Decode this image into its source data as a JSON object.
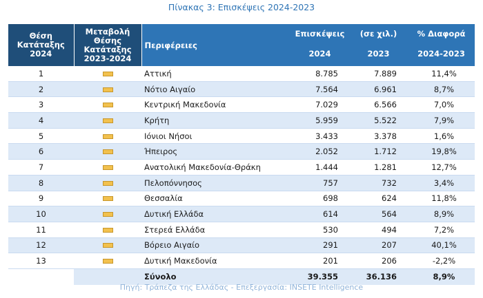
{
  "caption": "Πίνακας 3: Επισκέψεις 2024-2023",
  "header": {
    "rank_line1": "Θέση",
    "rank_line2": "Κατάταξης",
    "rank_line3": "2024",
    "change_line1": "Μεταβολή",
    "change_line2": "Θέσης",
    "change_line3": "Κατάταξης",
    "change_line4": "2023-2024",
    "region": "Περιφέρειες",
    "visits": "Επισκέψεις",
    "thousands": "(σε χιλ.)",
    "diff": "% Διαφορά",
    "year_2024": "2024",
    "year_2023": "2023",
    "diff_period": "2024-2023"
  },
  "rows": [
    {
      "rank": "1",
      "region": "Αττική",
      "v2024": "8.785",
      "v2023": "7.889",
      "diff": "11,4%"
    },
    {
      "rank": "2",
      "region": "Νότιο Αιγαίο",
      "v2024": "7.564",
      "v2023": "6.961",
      "diff": "8,7%"
    },
    {
      "rank": "3",
      "region": "Κεντρική Μακεδονία",
      "v2024": "7.029",
      "v2023": "6.566",
      "diff": "7,0%"
    },
    {
      "rank": "4",
      "region": "Κρήτη",
      "v2024": "5.959",
      "v2023": "5.522",
      "diff": "7,9%"
    },
    {
      "rank": "5",
      "region": "Ιόνιοι Νήσοι",
      "v2024": "3.433",
      "v2023": "3.378",
      "diff": "1,6%"
    },
    {
      "rank": "6",
      "region": "Ήπειρος",
      "v2024": "2.052",
      "v2023": "1.712",
      "diff": "19,8%"
    },
    {
      "rank": "7",
      "region": "Ανατολική Μακεδονία-Θράκη",
      "v2024": "1.444",
      "v2023": "1.281",
      "diff": "12,7%"
    },
    {
      "rank": "8",
      "region": "Πελοπόννησος",
      "v2024": "757",
      "v2023": "732",
      "diff": "3,4%"
    },
    {
      "rank": "9",
      "region": "Θεσσαλία",
      "v2024": "698",
      "v2023": "624",
      "diff": "11,8%"
    },
    {
      "rank": "10",
      "region": "Δυτική Ελλάδα",
      "v2024": "614",
      "v2023": "564",
      "diff": "8,9%"
    },
    {
      "rank": "11",
      "region": "Στερεά Ελλάδα",
      "v2024": "530",
      "v2023": "494",
      "diff": "7,2%"
    },
    {
      "rank": "12",
      "region": "Βόρειο Αιγαίο",
      "v2024": "291",
      "v2023": "207",
      "diff": "40,1%"
    },
    {
      "rank": "13",
      "region": "Δυτική Μακεδονία",
      "v2024": "201",
      "v2023": "206",
      "diff": "-2,2%"
    }
  ],
  "total": {
    "label": "Σύνολο",
    "v2024": "39.355",
    "v2023": "36.136",
    "diff": "8,9%"
  },
  "change_marker_icon": "no-change-dash-icon",
  "colors": {
    "header_dark": "#1f4e79",
    "header_blue": "#2e75b6",
    "row_stripe": "#dde9f7",
    "caption": "#2e74b5",
    "marker": "#f2c14e"
  },
  "source": "Πηγή: Τράπεζα της Ελλάδας - Επεξεργασία: INSETE Intelligence"
}
